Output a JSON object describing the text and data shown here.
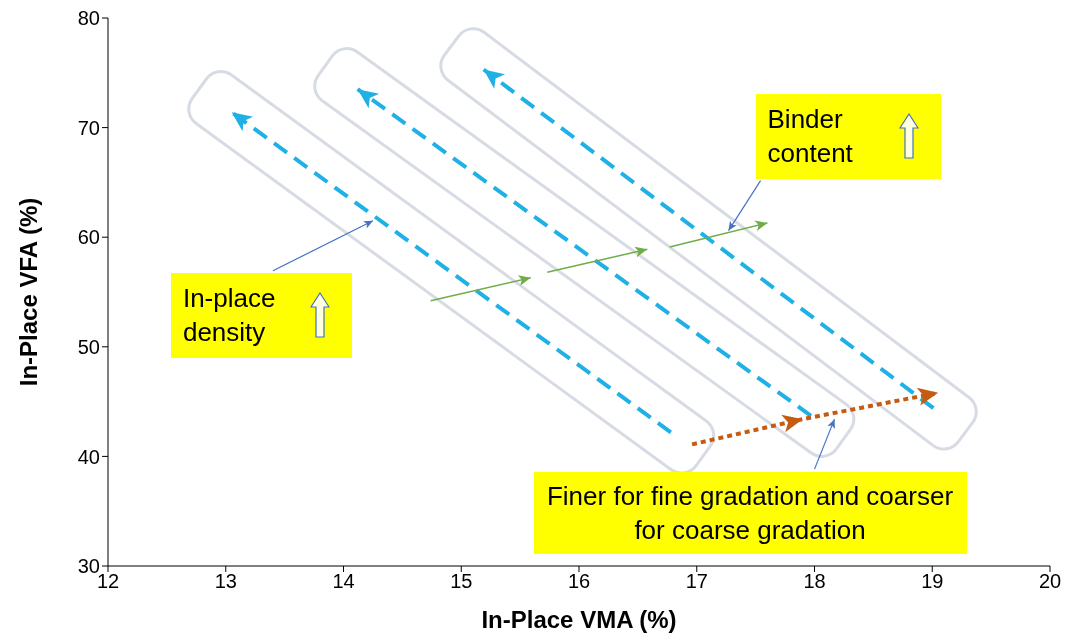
{
  "chart_data": {
    "type": "line",
    "xlabel": "In-Place VMA (%)",
    "ylabel": "In-Place VFA (%)",
    "xlim": [
      12,
      20
    ],
    "xticks": [
      12,
      13,
      14,
      15,
      16,
      17,
      18,
      19,
      20
    ],
    "ylim": [
      30,
      80
    ],
    "yticks": [
      30,
      40,
      50,
      60,
      70,
      80
    ],
    "series": [
      {
        "color": "#1fb1e6",
        "line_style": "dashed",
        "x": [
          16.78,
          13.05
        ],
        "values": [
          42.2,
          71.4
        ]
      },
      {
        "color": "#1fb1e6",
        "line_style": "dashed",
        "x": [
          17.97,
          14.12
        ],
        "values": [
          43.7,
          73.5
        ]
      },
      {
        "color": "#1fb1e6",
        "line_style": "dashed",
        "x": [
          19.01,
          15.19
        ],
        "values": [
          44.4,
          75.3
        ]
      },
      {
        "color": "#70ad47",
        "line_style": "solid",
        "x": [
          14.74,
          15.59
        ],
        "values": [
          54.2,
          56.3
        ]
      },
      {
        "color": "#70ad47",
        "line_style": "solid",
        "x": [
          15.73,
          16.58
        ],
        "values": [
          56.8,
          58.9
        ]
      },
      {
        "color": "#70ad47",
        "line_style": "solid",
        "x": [
          16.77,
          17.6
        ],
        "values": [
          59.1,
          61.3
        ]
      },
      {
        "color": "#c55a11",
        "line_style": "dotted",
        "x": [
          16.96,
          17.9,
          19.05
        ],
        "values": [
          41.1,
          43.4,
          45.8
        ]
      }
    ],
    "annotations": [
      {
        "text": "In-place density",
        "x": 14.25,
        "y": 61.5
      },
      {
        "text": "Binder content",
        "x": 17.27,
        "y": 60.6
      },
      {
        "text": "Finer for fine gradation and coarser for coarse gradation",
        "x": 18.17,
        "y": 43.4
      }
    ]
  }
}
